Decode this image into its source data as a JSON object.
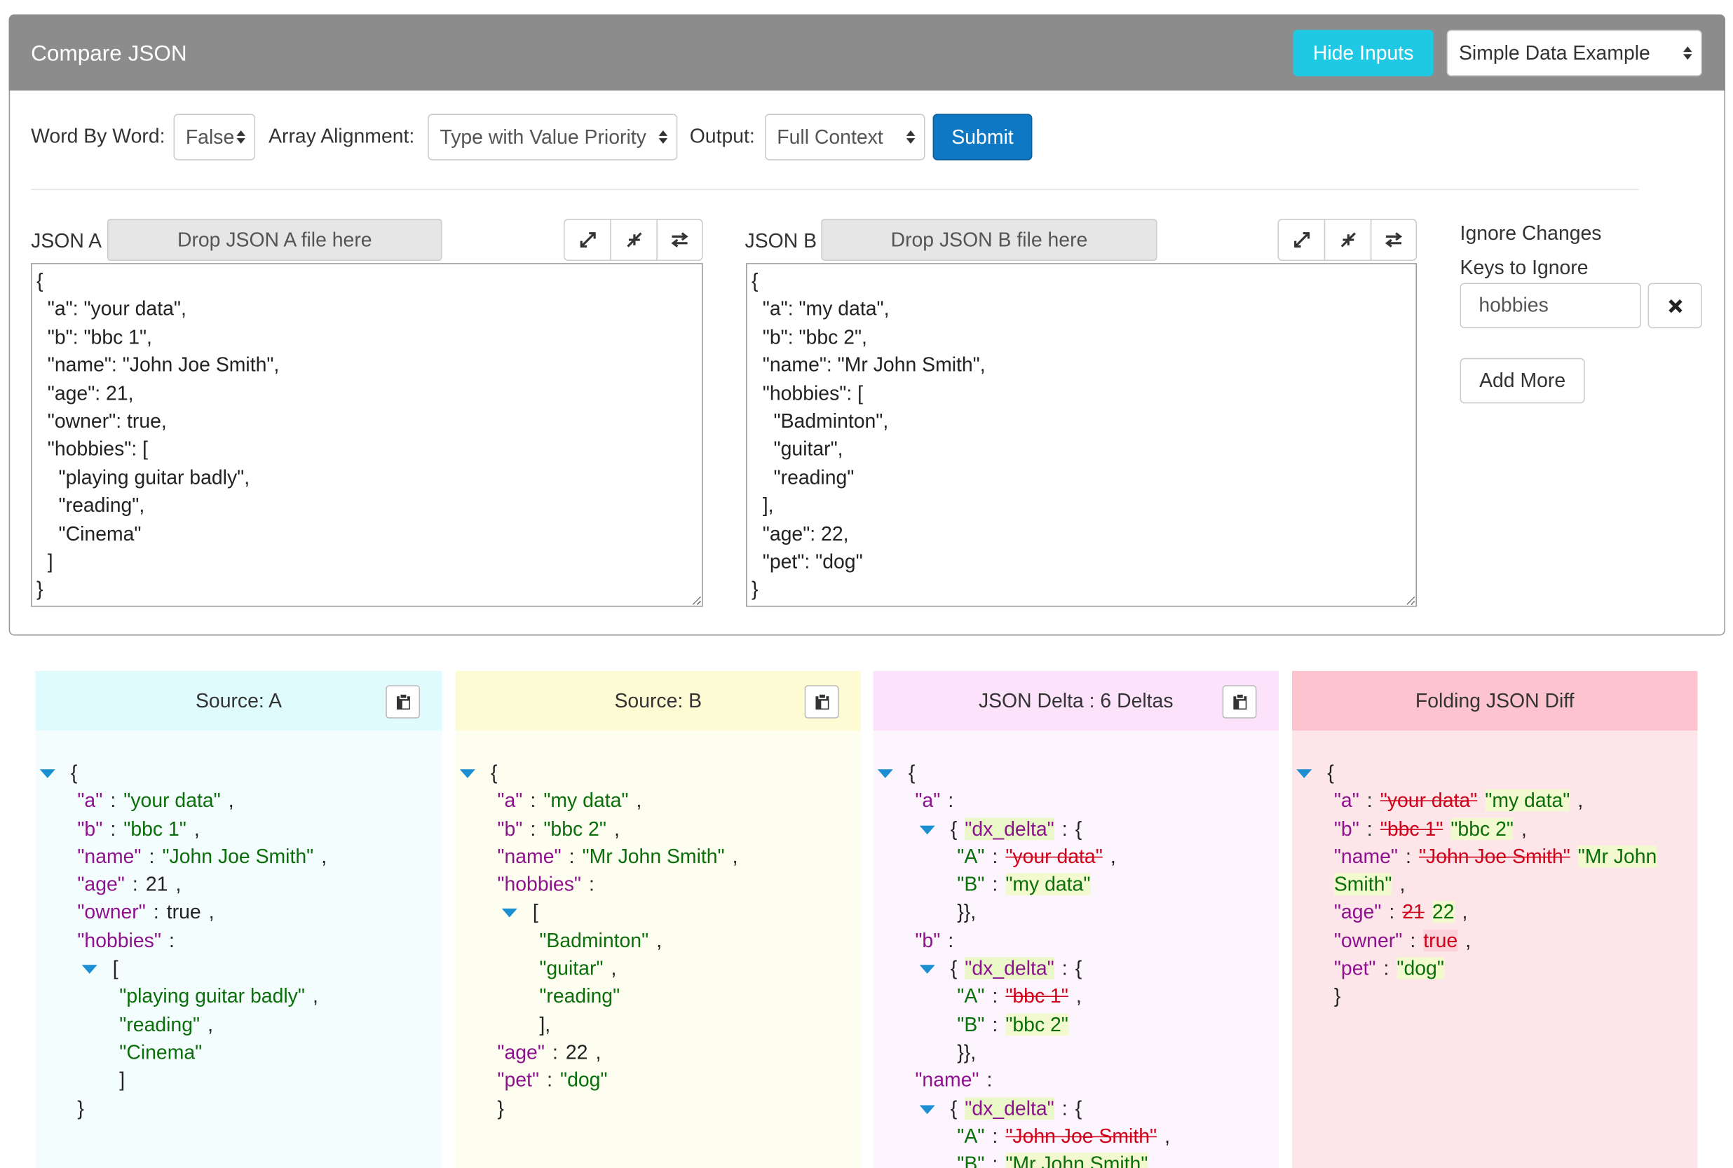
{
  "header": {
    "title": "Compare JSON",
    "hide_button": "Hide Inputs",
    "example": "Simple Data Example"
  },
  "options": {
    "word_by_word_label": "Word By Word:",
    "word_by_word": "False",
    "array_alignment_label": "Array Alignment:",
    "array_alignment": "Type with Value Priority",
    "output_label": "Output:",
    "output": "Full Context",
    "submit": "Submit"
  },
  "inputs": [
    {
      "label": "JSON A",
      "drop": "Drop JSON A file here",
      "text": "{\n  \"a\": \"your data\",\n  \"b\": \"bbc 1\",\n  \"name\": \"John Joe Smith\",\n  \"age\": 21,\n  \"owner\": true,\n  \"hobbies\": [\n    \"playing guitar badly\",\n    \"reading\",\n    \"Cinema\"\n  ]\n}"
    },
    {
      "label": "JSON B",
      "drop": "Drop JSON B file here",
      "text": "{\n  \"a\": \"my data\",\n  \"b\": \"bbc 2\",\n  \"name\": \"Mr John Smith\",\n  \"hobbies\": [\n    \"Badminton\",\n    \"guitar\",\n    \"reading\"\n  ],\n  \"age\": 22,\n  \"pet\": \"dog\"\n}"
    }
  ],
  "ignore": {
    "title": "Ignore Changes",
    "keys_label": "Keys to Ignore",
    "key": "hobbies",
    "add_more": "Add More"
  },
  "panels": [
    {
      "title": "Source: A",
      "lines": [
        [
          "{"
        ],
        [
          "\"a\"",
          ":",
          "\"your data\"",
          ","
        ],
        [
          "\"b\"",
          ":",
          "\"bbc 1\"",
          ","
        ],
        [
          "\"name\"",
          ":",
          "\"John Joe Smith\"",
          ","
        ],
        [
          "\"age\"",
          ":",
          "21",
          ","
        ],
        [
          "\"owner\"",
          ":",
          "true",
          ","
        ],
        [
          "\"hobbies\"",
          ":"
        ],
        [
          "["
        ],
        [
          "\"playing guitar badly\"",
          ","
        ],
        [
          "\"reading\"",
          ","
        ],
        [
          "\"Cinema\""
        ],
        [
          "]"
        ],
        [
          "}"
        ]
      ]
    },
    {
      "title": "Source: B",
      "lines": [
        [
          "{"
        ],
        [
          "\"a\"",
          ":",
          "\"my data\"",
          ","
        ],
        [
          "\"b\"",
          ":",
          "\"bbc 2\"",
          ","
        ],
        [
          "\"name\"",
          ":",
          "\"Mr John Smith\"",
          ","
        ],
        [
          "\"hobbies\"",
          ":"
        ],
        [
          "["
        ],
        [
          "\"Badminton\"",
          ","
        ],
        [
          "\"guitar\"",
          ","
        ],
        [
          "\"reading\""
        ],
        [
          "],"
        ],
        [
          "\"age\"",
          ":",
          "22",
          ","
        ],
        [
          "\"pet\"",
          ":",
          "\"dog\""
        ],
        [
          "}"
        ]
      ]
    },
    {
      "title": "JSON Delta : 6 Deltas",
      "lines": [
        [
          "{"
        ],
        [
          "\"a\"",
          ":"
        ],
        [
          "{",
          "\"dx_delta\"",
          ":",
          "{"
        ],
        [
          "\"A\"",
          ":",
          "\"your data\"",
          ","
        ],
        [
          "\"B\"",
          ":",
          "\"my data\""
        ],
        [
          "}},"
        ],
        [
          "\"b\"",
          ":"
        ],
        [
          "{",
          "\"dx_delta\"",
          ":",
          "{"
        ],
        [
          "\"A\"",
          ":",
          "\"bbc 1\"",
          ","
        ],
        [
          "\"B\"",
          ":",
          "\"bbc 2\""
        ],
        [
          "}},"
        ],
        [
          "\"name\"",
          ":"
        ],
        [
          "{",
          "\"dx_delta\"",
          ":",
          "{"
        ],
        [
          "\"A\"",
          ":",
          "\"John Joe Smith\"",
          ","
        ],
        [
          "\"B\"",
          ":",
          "\"Mr John Smith\""
        ]
      ]
    },
    {
      "title": "Folding JSON Diff",
      "lines": [
        [
          "{"
        ],
        [
          "\"a\"",
          ":",
          "\"your data\"",
          "\"my data\"",
          ","
        ],
        [
          "\"b\"",
          ":",
          "\"bbc 1\"",
          "\"bbc 2\"",
          ","
        ],
        [
          "\"name\"",
          ":",
          "\"John Joe Smith\"",
          "\"Mr John Smith\"",
          ","
        ],
        [
          "\"age\"",
          ":",
          "21",
          "22",
          ","
        ],
        [
          "\"owner\"",
          ":",
          "true",
          ","
        ],
        [
          "\"pet\"",
          ":",
          "\"dog\""
        ],
        [
          "}"
        ]
      ]
    }
  ]
}
